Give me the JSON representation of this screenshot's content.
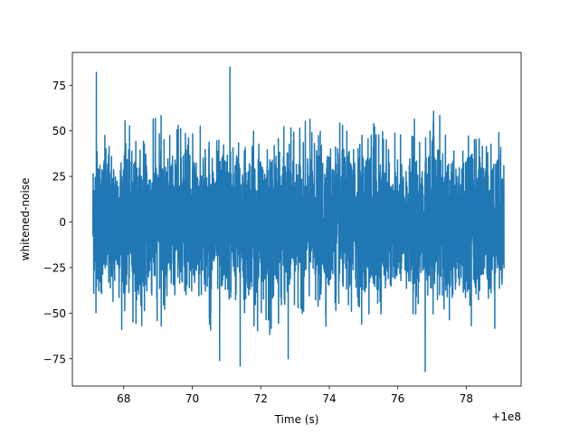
{
  "chart_data": {
    "type": "line",
    "title": "",
    "xlabel": "Time (s)",
    "ylabel": "whitened-noise",
    "x_offset_label": "+1e8",
    "x_offset": 100000000,
    "xlim": [
      66.5,
      79.6
    ],
    "ylim": [
      -90,
      93
    ],
    "xticks": [
      68,
      70,
      72,
      74,
      76,
      78
    ],
    "yticks": [
      -75,
      -50,
      -25,
      0,
      25,
      50,
      75
    ],
    "x_start": 67.1,
    "x_end": 79.1,
    "grid": false,
    "legend": "none",
    "series": [
      {
        "color": "#1f77b4",
        "typical_amplitude": 45,
        "notable_peaks": [
          {
            "x": 67.2,
            "y": 82
          },
          {
            "x": 71.1,
            "y": 85
          },
          {
            "x": 76.8,
            "y": -82
          },
          {
            "x": 71.4,
            "y": -79
          },
          {
            "x": 70.8,
            "y": -76
          },
          {
            "x": 72.8,
            "y": -75
          }
        ]
      }
    ]
  }
}
